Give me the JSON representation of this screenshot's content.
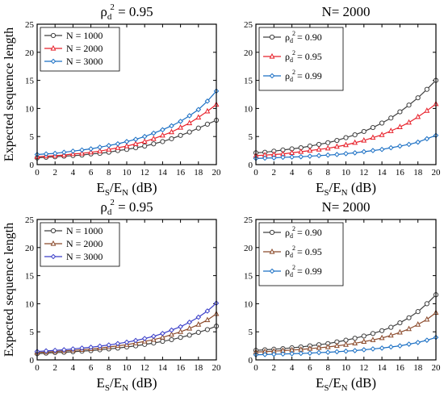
{
  "chart_data": [
    {
      "type": "line",
      "title_main": "ρ",
      "title_sub": "d",
      "title_sup": "2",
      "title_tail": " = 0.95",
      "xlabel_main": "E",
      "xlabel_sub1": "S",
      "xlabel_mid": "/E",
      "xlabel_sub2": "N",
      "xlabel_tail": " (dB)",
      "ylabel": "Expected sequence length",
      "xlim": [
        0,
        20
      ],
      "ylim": [
        0,
        25
      ],
      "xticks": [
        0,
        2,
        4,
        6,
        8,
        10,
        12,
        14,
        16,
        18,
        20
      ],
      "yticks": [
        0,
        5,
        10,
        15,
        20,
        25
      ],
      "grid": false,
      "legend_position": "top-left",
      "x": [
        0,
        1,
        2,
        3,
        4,
        5,
        6,
        7,
        8,
        9,
        10,
        11,
        12,
        13,
        14,
        15,
        16,
        17,
        18,
        19,
        20
      ],
      "series": [
        {
          "label_main": "N = 1000",
          "label_sub": "",
          "label_sup": "",
          "label_tail": "",
          "color": "#404040",
          "marker": "circle",
          "values": [
            1.2,
            1.3,
            1.4,
            1.5,
            1.6,
            1.7,
            1.9,
            2.0,
            2.2,
            2.5,
            2.7,
            3.0,
            3.3,
            3.7,
            4.1,
            4.6,
            5.2,
            5.8,
            6.5,
            7.2,
            7.9
          ]
        },
        {
          "label_main": "N = 2000",
          "label_sub": "",
          "label_sup": "",
          "label_tail": "",
          "color": "#e8202a",
          "marker": "triangle",
          "values": [
            1.4,
            1.5,
            1.6,
            1.7,
            1.9,
            2.0,
            2.2,
            2.4,
            2.7,
            3.0,
            3.3,
            3.7,
            4.1,
            4.6,
            5.2,
            5.8,
            6.6,
            7.4,
            8.4,
            9.5,
            10.7
          ]
        },
        {
          "label_main": "N = 3000",
          "label_sub": "",
          "label_sup": "",
          "label_tail": "",
          "color": "#1a6fc4",
          "marker": "diamond",
          "values": [
            1.8,
            1.9,
            2.0,
            2.2,
            2.4,
            2.6,
            2.8,
            3.1,
            3.4,
            3.7,
            4.1,
            4.5,
            5.0,
            5.6,
            6.2,
            6.9,
            7.7,
            8.7,
            9.8,
            11.3,
            13.1
          ]
        }
      ]
    },
    {
      "type": "line",
      "title_main": "N= 2000",
      "title_sub": "",
      "title_sup": "",
      "title_tail": "",
      "xlabel_main": "E",
      "xlabel_sub1": "S",
      "xlabel_mid": "/E",
      "xlabel_sub2": "N",
      "xlabel_tail": " (dB)",
      "ylabel": "",
      "xlim": [
        0,
        20
      ],
      "ylim": [
        0,
        25
      ],
      "xticks": [
        0,
        2,
        4,
        6,
        8,
        10,
        12,
        14,
        16,
        18,
        20
      ],
      "yticks": [
        0,
        5,
        10,
        15,
        20,
        25
      ],
      "grid": false,
      "legend_position": "top-left",
      "x": [
        0,
        1,
        2,
        3,
        4,
        5,
        6,
        7,
        8,
        9,
        10,
        11,
        12,
        13,
        14,
        15,
        16,
        17,
        18,
        19,
        20
      ],
      "series": [
        {
          "label_main": "ρ",
          "label_sub": "d",
          "label_sup": "2",
          "label_tail": "= 0.90",
          "color": "#404040",
          "marker": "circle",
          "values": [
            2.1,
            2.2,
            2.4,
            2.6,
            2.8,
            3.0,
            3.3,
            3.6,
            3.9,
            4.3,
            4.8,
            5.3,
            5.9,
            6.6,
            7.4,
            8.3,
            9.4,
            10.6,
            11.9,
            13.4,
            15.0
          ]
        },
        {
          "label_main": "ρ",
          "label_sub": "d",
          "label_sup": "2",
          "label_tail": "= 0.95",
          "color": "#e8202a",
          "marker": "triangle",
          "values": [
            1.6,
            1.7,
            1.8,
            1.9,
            2.1,
            2.3,
            2.5,
            2.7,
            2.9,
            3.2,
            3.5,
            3.9,
            4.3,
            4.8,
            5.3,
            6.0,
            6.7,
            7.5,
            8.5,
            9.6,
            10.8
          ]
        },
        {
          "label_main": "ρ",
          "label_sub": "d",
          "label_sup": "2",
          "label_tail": "= 0.99",
          "color": "#1a6fc4",
          "marker": "diamond",
          "values": [
            1.1,
            1.15,
            1.2,
            1.3,
            1.35,
            1.4,
            1.5,
            1.6,
            1.7,
            1.8,
            1.95,
            2.1,
            2.3,
            2.5,
            2.7,
            3.0,
            3.3,
            3.6,
            4.0,
            4.6,
            5.2
          ]
        }
      ]
    },
    {
      "type": "line",
      "title_main": "ρ",
      "title_sub": "d",
      "title_sup": "2",
      "title_tail": " = 0.95",
      "xlabel_main": "E",
      "xlabel_sub1": "S",
      "xlabel_mid": "/E",
      "xlabel_sub2": "N",
      "xlabel_tail": " (dB)",
      "ylabel": "Expected sequence length",
      "xlim": [
        0,
        20
      ],
      "ylim": [
        0,
        25
      ],
      "xticks": [
        0,
        2,
        4,
        6,
        8,
        10,
        12,
        14,
        16,
        18,
        20
      ],
      "yticks": [
        0,
        5,
        10,
        15,
        20,
        25
      ],
      "grid": false,
      "legend_position": "top-left",
      "x": [
        0,
        1,
        2,
        3,
        4,
        5,
        6,
        7,
        8,
        9,
        10,
        11,
        12,
        13,
        14,
        15,
        16,
        17,
        18,
        19,
        20
      ],
      "series": [
        {
          "label_main": "N = 1000",
          "label_sub": "",
          "label_sup": "",
          "label_tail": "",
          "color": "#404040",
          "marker": "circle",
          "values": [
            1.1,
            1.2,
            1.3,
            1.35,
            1.45,
            1.55,
            1.65,
            1.8,
            1.95,
            2.1,
            2.3,
            2.5,
            2.75,
            3.0,
            3.3,
            3.6,
            4.0,
            4.4,
            4.9,
            5.4,
            6.0
          ]
        },
        {
          "label_main": "N = 2000",
          "label_sub": "",
          "label_sup": "",
          "label_tail": "",
          "color": "#8b4a2b",
          "marker": "triangle",
          "values": [
            1.3,
            1.4,
            1.5,
            1.6,
            1.7,
            1.8,
            1.95,
            2.1,
            2.3,
            2.5,
            2.7,
            3.0,
            3.3,
            3.6,
            4.0,
            4.5,
            5.0,
            5.6,
            6.3,
            7.1,
            8.2
          ]
        },
        {
          "label_main": "N = 3000",
          "label_sub": "",
          "label_sup": "",
          "label_tail": "",
          "color": "#3a3ec8",
          "marker": "diamond",
          "values": [
            1.5,
            1.6,
            1.7,
            1.8,
            1.95,
            2.1,
            2.25,
            2.45,
            2.65,
            2.9,
            3.15,
            3.45,
            3.8,
            4.2,
            4.7,
            5.3,
            5.9,
            6.7,
            7.6,
            8.7,
            10.1
          ]
        }
      ]
    },
    {
      "type": "line",
      "title_main": "N= 2000",
      "title_sub": "",
      "title_sup": "",
      "title_tail": "",
      "xlabel_main": "E",
      "xlabel_sub1": "S",
      "xlabel_mid": "/E",
      "xlabel_sub2": "N",
      "xlabel_tail": " (dB)",
      "ylabel": "",
      "xlim": [
        0,
        20
      ],
      "ylim": [
        0,
        25
      ],
      "xticks": [
        0,
        2,
        4,
        6,
        8,
        10,
        12,
        14,
        16,
        18,
        20
      ],
      "yticks": [
        0,
        5,
        10,
        15,
        20,
        25
      ],
      "grid": false,
      "legend_position": "top-left",
      "x": [
        0,
        1,
        2,
        3,
        4,
        5,
        6,
        7,
        8,
        9,
        10,
        11,
        12,
        13,
        14,
        15,
        16,
        17,
        18,
        19,
        20
      ],
      "series": [
        {
          "label_main": "ρ",
          "label_sub": "d",
          "label_sup": "2",
          "label_tail": "= 0.90",
          "color": "#404040",
          "marker": "circle",
          "values": [
            1.7,
            1.8,
            1.9,
            2.0,
            2.15,
            2.3,
            2.5,
            2.7,
            2.9,
            3.2,
            3.5,
            3.85,
            4.25,
            4.7,
            5.2,
            5.8,
            6.6,
            7.5,
            8.6,
            10.0,
            11.6
          ]
        },
        {
          "label_main": "ρ",
          "label_sub": "d",
          "label_sup": "2",
          "label_tail": "= 0.95",
          "color": "#8b4a2b",
          "marker": "triangle",
          "values": [
            1.4,
            1.45,
            1.55,
            1.65,
            1.75,
            1.85,
            2.0,
            2.15,
            2.3,
            2.5,
            2.7,
            2.95,
            3.25,
            3.55,
            3.9,
            4.35,
            4.9,
            5.5,
            6.3,
            7.2,
            8.4
          ]
        },
        {
          "label_main": "ρ",
          "label_sub": "d",
          "label_sup": "2",
          "label_tail": "= 0.99",
          "color": "#1a6fc4",
          "marker": "diamond",
          "values": [
            0.9,
            0.95,
            1.0,
            1.05,
            1.1,
            1.15,
            1.2,
            1.3,
            1.35,
            1.45,
            1.55,
            1.65,
            1.8,
            1.95,
            2.1,
            2.3,
            2.5,
            2.8,
            3.1,
            3.5,
            4.0
          ]
        }
      ]
    }
  ]
}
